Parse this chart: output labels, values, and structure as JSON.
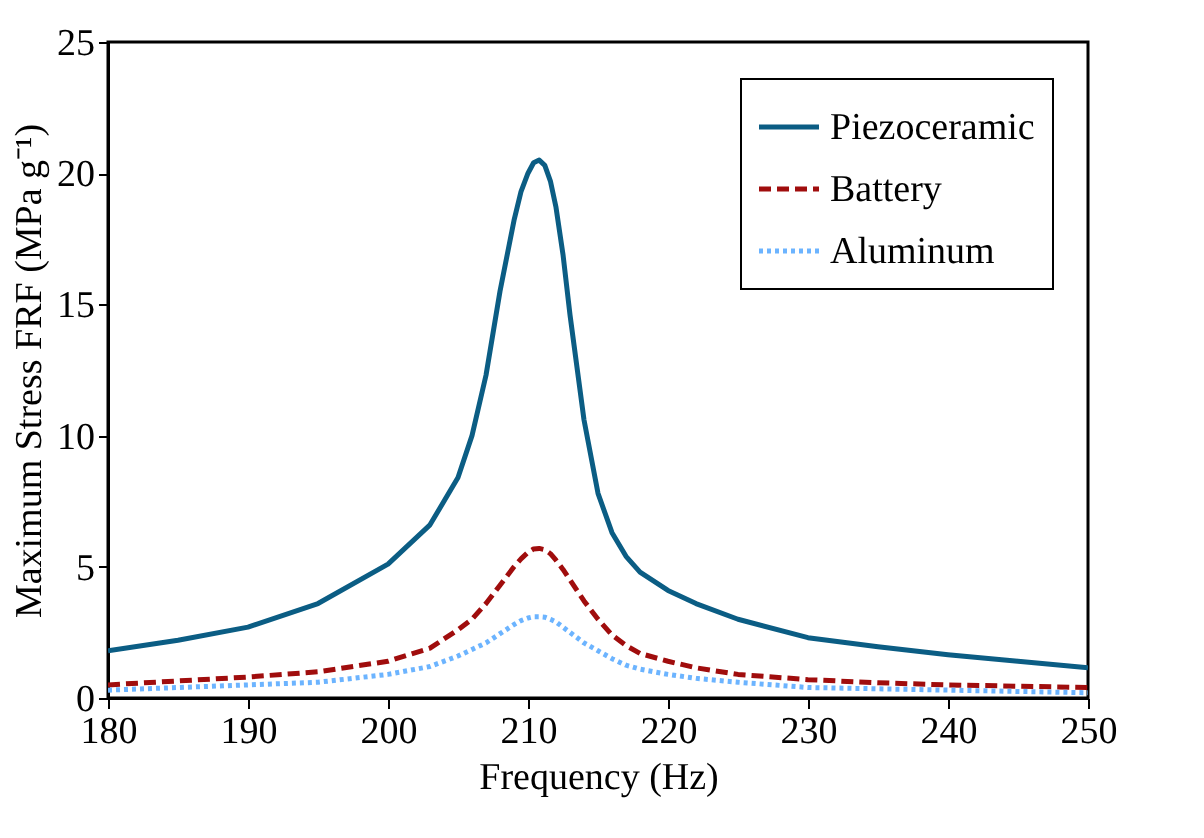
{
  "chart_data": {
    "type": "line",
    "xlabel": "Frequency (Hz)",
    "ylabel": "Maximum Stress FRF (MPa g⁻¹)",
    "x": [
      180,
      185,
      190,
      195,
      200,
      203,
      205,
      206,
      207,
      208,
      209,
      209.5,
      210,
      210.4,
      210.8,
      211.2,
      211.6,
      212,
      212.5,
      213,
      214,
      215,
      216,
      217,
      218,
      220,
      222,
      225,
      230,
      235,
      240,
      245,
      250
    ],
    "series": [
      {
        "name": "Piezoceramic",
        "color": "#0b5d84",
        "line_style": "solid",
        "values": [
          1.8,
          2.2,
          2.7,
          3.6,
          5.1,
          6.6,
          8.4,
          10.0,
          12.3,
          15.5,
          18.2,
          19.3,
          20.0,
          20.4,
          20.5,
          20.3,
          19.7,
          18.7,
          16.9,
          14.6,
          10.6,
          7.8,
          6.3,
          5.4,
          4.8,
          4.1,
          3.6,
          3.0,
          2.3,
          1.95,
          1.65,
          1.4,
          1.15
        ]
      },
      {
        "name": "Battery",
        "color": "#a00d0d",
        "line_style": "dashed",
        "values": [
          0.5,
          0.65,
          0.8,
          1.0,
          1.4,
          1.9,
          2.6,
          3.0,
          3.6,
          4.3,
          5.0,
          5.3,
          5.55,
          5.68,
          5.7,
          5.65,
          5.5,
          5.25,
          4.9,
          4.5,
          3.7,
          3.0,
          2.4,
          2.0,
          1.7,
          1.4,
          1.15,
          0.9,
          0.7,
          0.58,
          0.5,
          0.45,
          0.4
        ]
      },
      {
        "name": "Aluminum",
        "color": "#6cb4ff",
        "line_style": "dotted",
        "values": [
          0.3,
          0.4,
          0.5,
          0.6,
          0.9,
          1.2,
          1.6,
          1.85,
          2.1,
          2.45,
          2.8,
          2.95,
          3.05,
          3.1,
          3.1,
          3.08,
          3.0,
          2.9,
          2.7,
          2.5,
          2.1,
          1.8,
          1.5,
          1.25,
          1.1,
          0.9,
          0.75,
          0.6,
          0.4,
          0.35,
          0.3,
          0.25,
          0.2
        ]
      }
    ],
    "xlim": [
      180,
      250
    ],
    "xticks": [
      180,
      190,
      200,
      210,
      220,
      230,
      240,
      250
    ],
    "ylim": [
      0,
      25
    ],
    "yticks": [
      0,
      5,
      10,
      15,
      20,
      25
    ],
    "grid": false,
    "legend": "top right",
    "marker": "none"
  }
}
